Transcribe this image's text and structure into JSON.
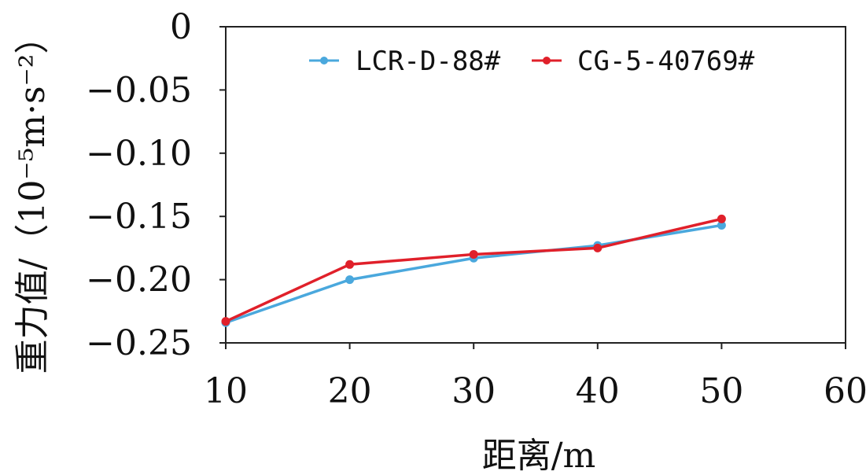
{
  "chart_data": {
    "type": "line",
    "xlabel": "距离/m",
    "ylabel": "重力值/（10⁻⁵m·s⁻²）",
    "xlim": [
      10,
      60
    ],
    "ylim": [
      -0.25,
      0
    ],
    "x_ticks": [
      "10",
      "20",
      "30",
      "40",
      "50",
      "60"
    ],
    "y_ticks": [
      "0",
      "−0.05",
      "−0.10",
      "−0.15",
      "−0.20",
      "−0.25"
    ],
    "y_tick_values": [
      0,
      -0.05,
      -0.1,
      -0.15,
      -0.2,
      -0.25
    ],
    "x_tick_values": [
      10,
      20,
      30,
      40,
      50,
      60
    ],
    "grid": false,
    "legend_position": "top",
    "series": [
      {
        "name": "LCR-D-88#",
        "color": "#4aa8dd",
        "x": [
          10,
          20,
          30,
          40,
          50
        ],
        "values": [
          -0.234,
          -0.2,
          -0.183,
          -0.173,
          -0.157
        ]
      },
      {
        "name": "CG-5-40769#",
        "color": "#e0202a",
        "x": [
          10,
          20,
          30,
          40,
          50
        ],
        "values": [
          -0.233,
          -0.188,
          -0.18,
          -0.175,
          -0.152
        ]
      }
    ]
  }
}
